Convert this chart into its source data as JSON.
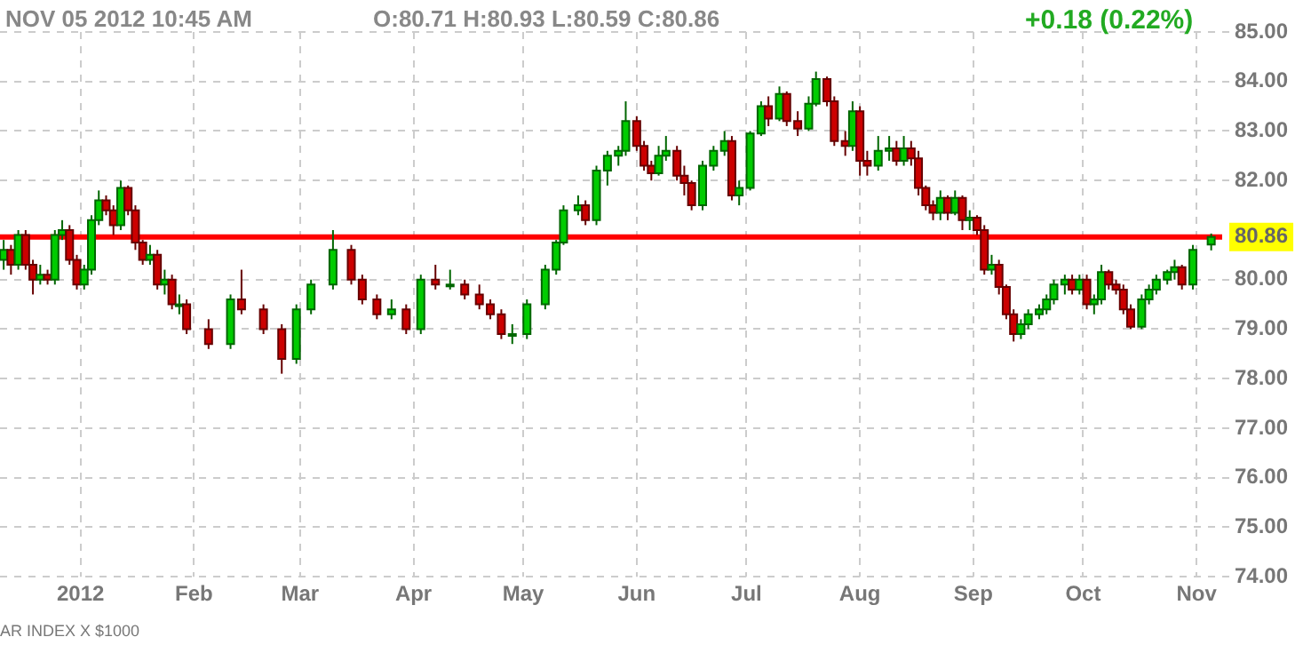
{
  "chart_data": {
    "type": "candlestick",
    "title": "NOV 05 2012 10:45 AM",
    "annotations": [
      "O:80.71 H:80.93 L:80.59 C:80.86",
      "+0.18 (0.22%)",
      "AR INDEX X $1000"
    ],
    "x": [
      "2011-12-11",
      "2011-12-13",
      "2011-12-15",
      "2011-12-17",
      "2011-12-19",
      "2011-12-21",
      "2011-12-23",
      "2011-12-25",
      "2011-12-27",
      "2011-12-29",
      "2011-12-31",
      "2012-01-02",
      "2012-01-04",
      "2012-01-06",
      "2012-01-08",
      "2012-01-10",
      "2012-01-12",
      "2012-01-14",
      "2012-01-16",
      "2012-01-18",
      "2012-01-20",
      "2012-01-22",
      "2012-01-24",
      "2012-01-26",
      "2012-01-28",
      "2012-01-30",
      "2012-02-05",
      "2012-02-11",
      "2012-02-14",
      "2012-02-20",
      "2012-02-25",
      "2012-02-29",
      "2012-03-04",
      "2012-03-10",
      "2012-03-15",
      "2012-03-18",
      "2012-03-22",
      "2012-03-26",
      "2012-03-30",
      "2012-04-03",
      "2012-04-07",
      "2012-04-11",
      "2012-04-15",
      "2012-04-19",
      "2012-04-22",
      "2012-04-25",
      "2012-04-28",
      "2012-05-02",
      "2012-05-07",
      "2012-05-10",
      "2012-05-12",
      "2012-05-16",
      "2012-05-18",
      "2012-05-21",
      "2012-05-24",
      "2012-05-27",
      "2012-05-29",
      "2012-06-01",
      "2012-06-03",
      "2012-06-05",
      "2012-06-07",
      "2012-06-09",
      "2012-06-12",
      "2012-06-14",
      "2012-06-16",
      "2012-06-19",
      "2012-06-22",
      "2012-06-25",
      "2012-06-27",
      "2012-06-29",
      "2012-07-02",
      "2012-07-05",
      "2012-07-07",
      "2012-07-10",
      "2012-07-12",
      "2012-07-15",
      "2012-07-18",
      "2012-07-20",
      "2012-07-23",
      "2012-07-25",
      "2012-07-28",
      "2012-07-30",
      "2012-08-01",
      "2012-08-03",
      "2012-08-06",
      "2012-08-09",
      "2012-08-11",
      "2012-08-13",
      "2012-08-15",
      "2012-08-17",
      "2012-08-19",
      "2012-08-21",
      "2012-08-23",
      "2012-08-25",
      "2012-08-27",
      "2012-08-29",
      "2012-08-31",
      "2012-09-02",
      "2012-09-04",
      "2012-09-06",
      "2012-09-08",
      "2012-09-10",
      "2012-09-12",
      "2012-09-14",
      "2012-09-16",
      "2012-09-19",
      "2012-09-21",
      "2012-09-23",
      "2012-09-26",
      "2012-09-28",
      "2012-09-30",
      "2012-10-02",
      "2012-10-04",
      "2012-10-06",
      "2012-10-08",
      "2012-10-10",
      "2012-10-12",
      "2012-10-14",
      "2012-10-17",
      "2012-10-19",
      "2012-10-21",
      "2012-10-24",
      "2012-10-26",
      "2012-10-28",
      "2012-10-31",
      "2012-11-05"
    ],
    "ohlc": [
      [
        80.4,
        80.8,
        80.2,
        80.6
      ],
      [
        80.6,
        80.7,
        80.1,
        80.3
      ],
      [
        80.3,
        81.0,
        80.2,
        80.9
      ],
      [
        80.9,
        81.0,
        80.2,
        80.3
      ],
      [
        80.3,
        80.4,
        79.7,
        80.0
      ],
      [
        80.0,
        80.3,
        79.9,
        80.1
      ],
      [
        80.1,
        80.2,
        79.9,
        80.0
      ],
      [
        80.0,
        81.0,
        79.9,
        80.9
      ],
      [
        80.9,
        81.2,
        80.8,
        81.0
      ],
      [
        81.0,
        81.1,
        80.3,
        80.4
      ],
      [
        80.4,
        80.5,
        79.8,
        79.9
      ],
      [
        79.9,
        80.3,
        79.8,
        80.2
      ],
      [
        80.2,
        81.3,
        80.1,
        81.2
      ],
      [
        81.2,
        81.8,
        81.1,
        81.6
      ],
      [
        81.6,
        81.7,
        81.3,
        81.4
      ],
      [
        81.4,
        81.5,
        80.9,
        81.1
      ],
      [
        81.1,
        82.0,
        81.0,
        81.85
      ],
      [
        81.85,
        81.9,
        81.3,
        81.4
      ],
      [
        81.4,
        81.5,
        80.6,
        80.75
      ],
      [
        80.75,
        80.8,
        80.3,
        80.4
      ],
      [
        80.4,
        80.7,
        80.3,
        80.5
      ],
      [
        80.5,
        80.6,
        79.8,
        79.9
      ],
      [
        79.9,
        80.2,
        79.7,
        80.0
      ],
      [
        80.0,
        80.1,
        79.4,
        79.5
      ],
      [
        79.5,
        79.7,
        79.3,
        79.5
      ],
      [
        79.5,
        79.6,
        78.9,
        79.0
      ],
      [
        79.0,
        79.2,
        78.6,
        78.7
      ],
      [
        78.7,
        79.7,
        78.6,
        79.6
      ],
      [
        79.6,
        80.2,
        79.3,
        79.4
      ],
      [
        79.4,
        79.5,
        78.9,
        79.0
      ],
      [
        79.0,
        79.1,
        78.1,
        78.4
      ],
      [
        78.4,
        79.5,
        78.3,
        79.4
      ],
      [
        79.4,
        80.0,
        79.3,
        79.9
      ],
      [
        79.9,
        81.0,
        79.8,
        80.6
      ],
      [
        80.6,
        80.7,
        79.9,
        80.0
      ],
      [
        80.0,
        80.1,
        79.5,
        79.6
      ],
      [
        79.6,
        79.7,
        79.2,
        79.3
      ],
      [
        79.3,
        79.6,
        79.2,
        79.4
      ],
      [
        79.4,
        79.5,
        78.9,
        79.0
      ],
      [
        79.0,
        80.1,
        78.9,
        80.0
      ],
      [
        80.0,
        80.3,
        79.8,
        79.9
      ],
      [
        79.9,
        80.2,
        79.8,
        79.9
      ],
      [
        79.9,
        80.0,
        79.6,
        79.7
      ],
      [
        79.7,
        79.9,
        79.4,
        79.5
      ],
      [
        79.5,
        79.6,
        79.2,
        79.3
      ],
      [
        79.3,
        79.4,
        78.8,
        78.9
      ],
      [
        78.9,
        79.1,
        78.7,
        78.9
      ],
      [
        78.9,
        79.6,
        78.8,
        79.5
      ],
      [
        79.5,
        80.3,
        79.4,
        80.2
      ],
      [
        80.2,
        80.8,
        80.1,
        80.75
      ],
      [
        80.75,
        81.5,
        80.7,
        81.4
      ],
      [
        81.4,
        81.7,
        81.3,
        81.5
      ],
      [
        81.5,
        81.6,
        81.1,
        81.2
      ],
      [
        81.2,
        82.3,
        81.1,
        82.2
      ],
      [
        82.2,
        82.6,
        81.9,
        82.5
      ],
      [
        82.5,
        82.7,
        82.3,
        82.6
      ],
      [
        82.6,
        83.6,
        82.5,
        83.2
      ],
      [
        83.2,
        83.3,
        82.6,
        82.7
      ],
      [
        82.7,
        82.8,
        82.2,
        82.3
      ],
      [
        82.3,
        82.4,
        82.0,
        82.15
      ],
      [
        82.15,
        82.7,
        82.1,
        82.5
      ],
      [
        82.5,
        82.9,
        82.4,
        82.6
      ],
      [
        82.6,
        82.7,
        82.0,
        82.1
      ],
      [
        82.1,
        82.3,
        81.7,
        81.95
      ],
      [
        81.95,
        82.0,
        81.4,
        81.5
      ],
      [
        81.5,
        82.4,
        81.4,
        82.3
      ],
      [
        82.3,
        82.7,
        82.2,
        82.6
      ],
      [
        82.6,
        83.0,
        82.5,
        82.8
      ],
      [
        82.8,
        82.9,
        81.6,
        81.7
      ],
      [
        81.7,
        82.0,
        81.5,
        81.85
      ],
      [
        81.85,
        83.0,
        81.8,
        82.95
      ],
      [
        82.95,
        83.6,
        82.9,
        83.5
      ],
      [
        83.5,
        83.7,
        83.1,
        83.25
      ],
      [
        83.25,
        83.9,
        83.2,
        83.75
      ],
      [
        83.75,
        83.8,
        83.1,
        83.2
      ],
      [
        83.2,
        83.4,
        82.9,
        83.05
      ],
      [
        83.05,
        83.7,
        83.0,
        83.55
      ],
      [
        83.55,
        84.2,
        83.5,
        84.05
      ],
      [
        84.05,
        84.1,
        83.5,
        83.6
      ],
      [
        83.6,
        83.7,
        82.7,
        82.8
      ],
      [
        82.8,
        83.0,
        82.5,
        82.7
      ],
      [
        82.7,
        83.6,
        82.6,
        83.4
      ],
      [
        83.4,
        83.5,
        82.1,
        82.4
      ],
      [
        82.4,
        82.6,
        82.1,
        82.3
      ],
      [
        82.3,
        82.9,
        82.2,
        82.6
      ],
      [
        82.6,
        82.9,
        82.4,
        82.65
      ],
      [
        82.65,
        82.8,
        82.3,
        82.4
      ],
      [
        82.4,
        82.9,
        82.3,
        82.65
      ],
      [
        82.65,
        82.8,
        82.3,
        82.45
      ],
      [
        82.45,
        82.6,
        81.7,
        81.85
      ],
      [
        81.85,
        81.9,
        81.4,
        81.5
      ],
      [
        81.5,
        81.6,
        81.2,
        81.35
      ],
      [
        81.35,
        81.8,
        81.2,
        81.65
      ],
      [
        81.65,
        81.7,
        81.2,
        81.35
      ],
      [
        81.35,
        81.8,
        81.3,
        81.65
      ],
      [
        81.65,
        81.7,
        81.0,
        81.2
      ],
      [
        81.2,
        81.4,
        81.0,
        81.25
      ],
      [
        81.25,
        81.3,
        80.9,
        81.0
      ],
      [
        81.0,
        81.1,
        80.1,
        80.2
      ],
      [
        80.2,
        80.5,
        80.1,
        80.3
      ],
      [
        80.3,
        80.4,
        79.7,
        79.85
      ],
      [
        79.85,
        79.9,
        79.2,
        79.3
      ],
      [
        79.3,
        79.4,
        78.75,
        78.9
      ],
      [
        78.9,
        79.2,
        78.8,
        79.1
      ],
      [
        79.1,
        79.4,
        79.0,
        79.3
      ],
      [
        79.3,
        79.5,
        79.2,
        79.4
      ],
      [
        79.4,
        79.7,
        79.3,
        79.6
      ],
      [
        79.6,
        80.0,
        79.5,
        79.9
      ],
      [
        79.9,
        80.1,
        79.7,
        80.0
      ],
      [
        80.0,
        80.1,
        79.7,
        79.8
      ],
      [
        79.8,
        80.1,
        79.7,
        80.0
      ],
      [
        80.0,
        80.1,
        79.4,
        79.5
      ],
      [
        79.5,
        79.7,
        79.3,
        79.6
      ],
      [
        79.6,
        80.3,
        79.5,
        80.15
      ],
      [
        80.15,
        80.2,
        79.8,
        79.9
      ],
      [
        79.9,
        80.0,
        79.7,
        79.8
      ],
      [
        79.8,
        79.9,
        79.3,
        79.4
      ],
      [
        79.4,
        79.5,
        79.0,
        79.05
      ],
      [
        79.05,
        79.7,
        79.0,
        79.6
      ],
      [
        79.6,
        79.9,
        79.5,
        79.8
      ],
      [
        79.8,
        80.1,
        79.7,
        80.0
      ],
      [
        80.0,
        80.2,
        79.9,
        80.15
      ],
      [
        80.15,
        80.4,
        80.0,
        80.25
      ],
      [
        80.25,
        80.3,
        79.8,
        79.9
      ],
      [
        79.9,
        80.7,
        79.8,
        80.6
      ],
      [
        80.71,
        80.93,
        80.59,
        80.86
      ]
    ],
    "xlim": [
      "2011-12-10",
      "2012-11-08"
    ],
    "xticks": [
      {
        "value": "2012-01-01",
        "label": "2012"
      },
      {
        "value": "2012-02-01",
        "label": "Feb"
      },
      {
        "value": "2012-03-01",
        "label": "Mar"
      },
      {
        "value": "2012-04-01",
        "label": "Apr"
      },
      {
        "value": "2012-05-01",
        "label": "May"
      },
      {
        "value": "2012-06-01",
        "label": "Jun"
      },
      {
        "value": "2012-07-01",
        "label": "Jul"
      },
      {
        "value": "2012-08-01",
        "label": "Aug"
      },
      {
        "value": "2012-09-01",
        "label": "Sep"
      },
      {
        "value": "2012-10-01",
        "label": "Oct"
      },
      {
        "value": "2012-11-01",
        "label": "Nov"
      }
    ],
    "ylim": [
      74,
      85
    ],
    "yticks": [
      {
        "value": 74,
        "label": "74.00"
      },
      {
        "value": 75,
        "label": "75.00"
      },
      {
        "value": 76,
        "label": "76.00"
      },
      {
        "value": 77,
        "label": "77.00"
      },
      {
        "value": 78,
        "label": "78.00"
      },
      {
        "value": 79,
        "label": "79.00"
      },
      {
        "value": 80,
        "label": "80.00"
      },
      {
        "value": 82,
        "label": "82.00"
      },
      {
        "value": 83,
        "label": "83.00"
      },
      {
        "value": 84,
        "label": "84.00"
      },
      {
        "value": 85,
        "label": "85.00"
      }
    ],
    "ref_lines": [
      {
        "axis": "y",
        "value": 80.86,
        "label": "80.86",
        "color": "#ff0000"
      }
    ],
    "grid": true,
    "legend": false
  }
}
